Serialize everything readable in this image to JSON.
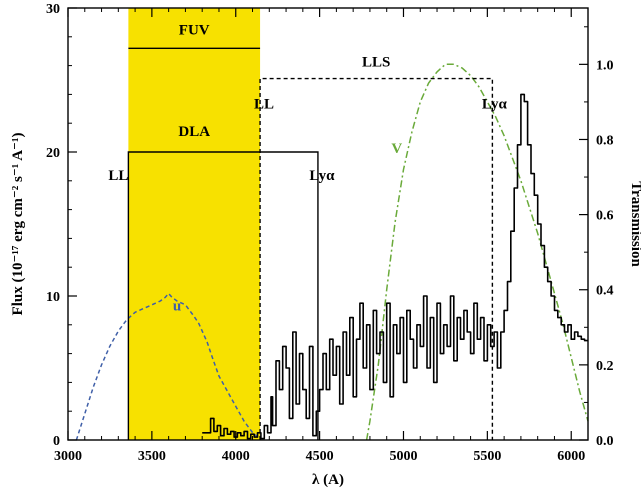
{
  "chart_data": {
    "type": "line",
    "xlabel": "λ (A)",
    "ylabel": "Flux (10⁻¹⁷ erg cm⁻² s⁻¹ A⁻¹)",
    "y2label": "Transmission",
    "xlim": [
      3000,
      6100
    ],
    "ylim": [
      0,
      30
    ],
    "y2lim": [
      0,
      1.15
    ],
    "xticks": [
      3000,
      3500,
      4000,
      4500,
      5000,
      5500,
      6000
    ],
    "yticks": [
      0,
      10,
      20,
      30
    ],
    "y2ticks": [
      0.0,
      0.2,
      0.4,
      0.6,
      0.8,
      1.0
    ],
    "colors": {
      "fuv_band": "#f7e100",
      "u_filter": "#3f5fa8",
      "v_filter": "#6aaa3a",
      "spectrum": "#000000"
    },
    "fuv_band": {
      "label": "FUV",
      "x_range": [
        3360,
        4145
      ],
      "bar_y": 27.2
    },
    "dla": {
      "label": "DLA",
      "x_range": [
        3360,
        4490
      ],
      "y": 20,
      "left_label": "LL",
      "right_label": "Lyα"
    },
    "lls": {
      "label": "LLS",
      "x_range": [
        4145,
        5530
      ],
      "y": 25.1,
      "left_label": "LL",
      "right_label": "Lyα"
    },
    "series": [
      {
        "name": "u",
        "axis": "right",
        "style": "dashed",
        "x": [
          3050,
          3100,
          3150,
          3200,
          3250,
          3300,
          3350,
          3400,
          3450,
          3500,
          3550,
          3580,
          3600,
          3620,
          3650,
          3700,
          3750,
          3780,
          3800,
          3830,
          3860,
          3900,
          3950,
          4000,
          4050,
          4100,
          4150
        ],
        "y": [
          0.0,
          0.07,
          0.14,
          0.2,
          0.25,
          0.29,
          0.32,
          0.34,
          0.35,
          0.36,
          0.37,
          0.38,
          0.39,
          0.38,
          0.37,
          0.36,
          0.33,
          0.31,
          0.29,
          0.26,
          0.22,
          0.17,
          0.13,
          0.09,
          0.05,
          0.02,
          0.0
        ]
      },
      {
        "name": "V",
        "axis": "right",
        "style": "dashdot",
        "x": [
          4780,
          4800,
          4850,
          4900,
          4950,
          5000,
          5050,
          5100,
          5150,
          5200,
          5250,
          5300,
          5350,
          5400,
          5450,
          5500,
          5550,
          5600,
          5650,
          5700,
          5750,
          5800,
          5850,
          5900,
          5950,
          6000,
          6050,
          6100
        ],
        "y": [
          0.0,
          0.05,
          0.2,
          0.4,
          0.58,
          0.72,
          0.82,
          0.9,
          0.95,
          0.98,
          1.0,
          1.0,
          0.99,
          0.97,
          0.94,
          0.9,
          0.86,
          0.81,
          0.75,
          0.69,
          0.62,
          0.55,
          0.47,
          0.39,
          0.31,
          0.22,
          0.13,
          0.05
        ]
      },
      {
        "name": "spectrum",
        "axis": "left",
        "style": "steps",
        "x": [
          3800,
          3850,
          3870,
          3890,
          3910,
          3930,
          3950,
          3970,
          3990,
          4010,
          4030,
          4050,
          4070,
          4090,
          4110,
          4130,
          4150,
          4170,
          4190,
          4210,
          4220,
          4240,
          4260,
          4280,
          4300,
          4320,
          4340,
          4360,
          4380,
          4400,
          4420,
          4440,
          4460,
          4480,
          4500,
          4520,
          4540,
          4560,
          4580,
          4600,
          4620,
          4640,
          4660,
          4680,
          4700,
          4720,
          4740,
          4760,
          4780,
          4800,
          4820,
          4840,
          4860,
          4880,
          4900,
          4920,
          4940,
          4960,
          4980,
          5000,
          5020,
          5040,
          5060,
          5080,
          5100,
          5120,
          5140,
          5160,
          5180,
          5200,
          5220,
          5240,
          5260,
          5280,
          5300,
          5320,
          5340,
          5360,
          5380,
          5400,
          5420,
          5440,
          5460,
          5480,
          5500,
          5520,
          5540,
          5560,
          5580,
          5600,
          5620,
          5640,
          5660,
          5680,
          5700,
          5720,
          5740,
          5760,
          5780,
          5800,
          5820,
          5840,
          5860,
          5880,
          5900,
          5920,
          5940,
          5960,
          5980,
          6000,
          6020,
          6040,
          6060,
          6080
        ],
        "y": [
          0.5,
          1.5,
          0.6,
          1.0,
          0.3,
          0.8,
          0.4,
          0.6,
          0.2,
          0.5,
          0.3,
          0.6,
          0.1,
          0.4,
          0.2,
          0.5,
          0.1,
          1.0,
          0.5,
          3.0,
          1.0,
          5.5,
          3.5,
          6.5,
          5.0,
          1.5,
          7.5,
          2.5,
          6.0,
          3.5,
          1.5,
          6.5,
          0.3,
          2.0,
          3.5,
          6.0,
          3.5,
          7.0,
          4.5,
          6.5,
          2.5,
          7.5,
          4.5,
          8.5,
          3.0,
          7.0,
          9.5,
          5.0,
          8.0,
          3.5,
          9.0,
          6.0,
          7.5,
          4.0,
          9.5,
          3.0,
          8.0,
          6.0,
          8.5,
          4.0,
          9.0,
          7.0,
          5.0,
          8.0,
          6.5,
          10.0,
          5.0,
          8.5,
          4.0,
          9.5,
          6.0,
          8.0,
          6.5,
          10.0,
          5.5,
          8.5,
          7.0,
          9.0,
          7.5,
          6.0,
          9.5,
          7.0,
          8.5,
          5.5,
          8.0,
          6.5,
          7.5,
          5.0,
          7.5,
          9.0,
          11.0,
          14.5,
          17.5,
          20.5,
          24.0,
          23.5,
          20.5,
          18.5,
          17.0,
          15.0,
          13.5,
          12.0,
          11.0,
          10.0,
          9.0,
          8.5,
          8.0,
          7.5,
          8.0,
          7.0,
          7.5,
          7.2,
          7.0,
          6.9
        ]
      }
    ]
  }
}
